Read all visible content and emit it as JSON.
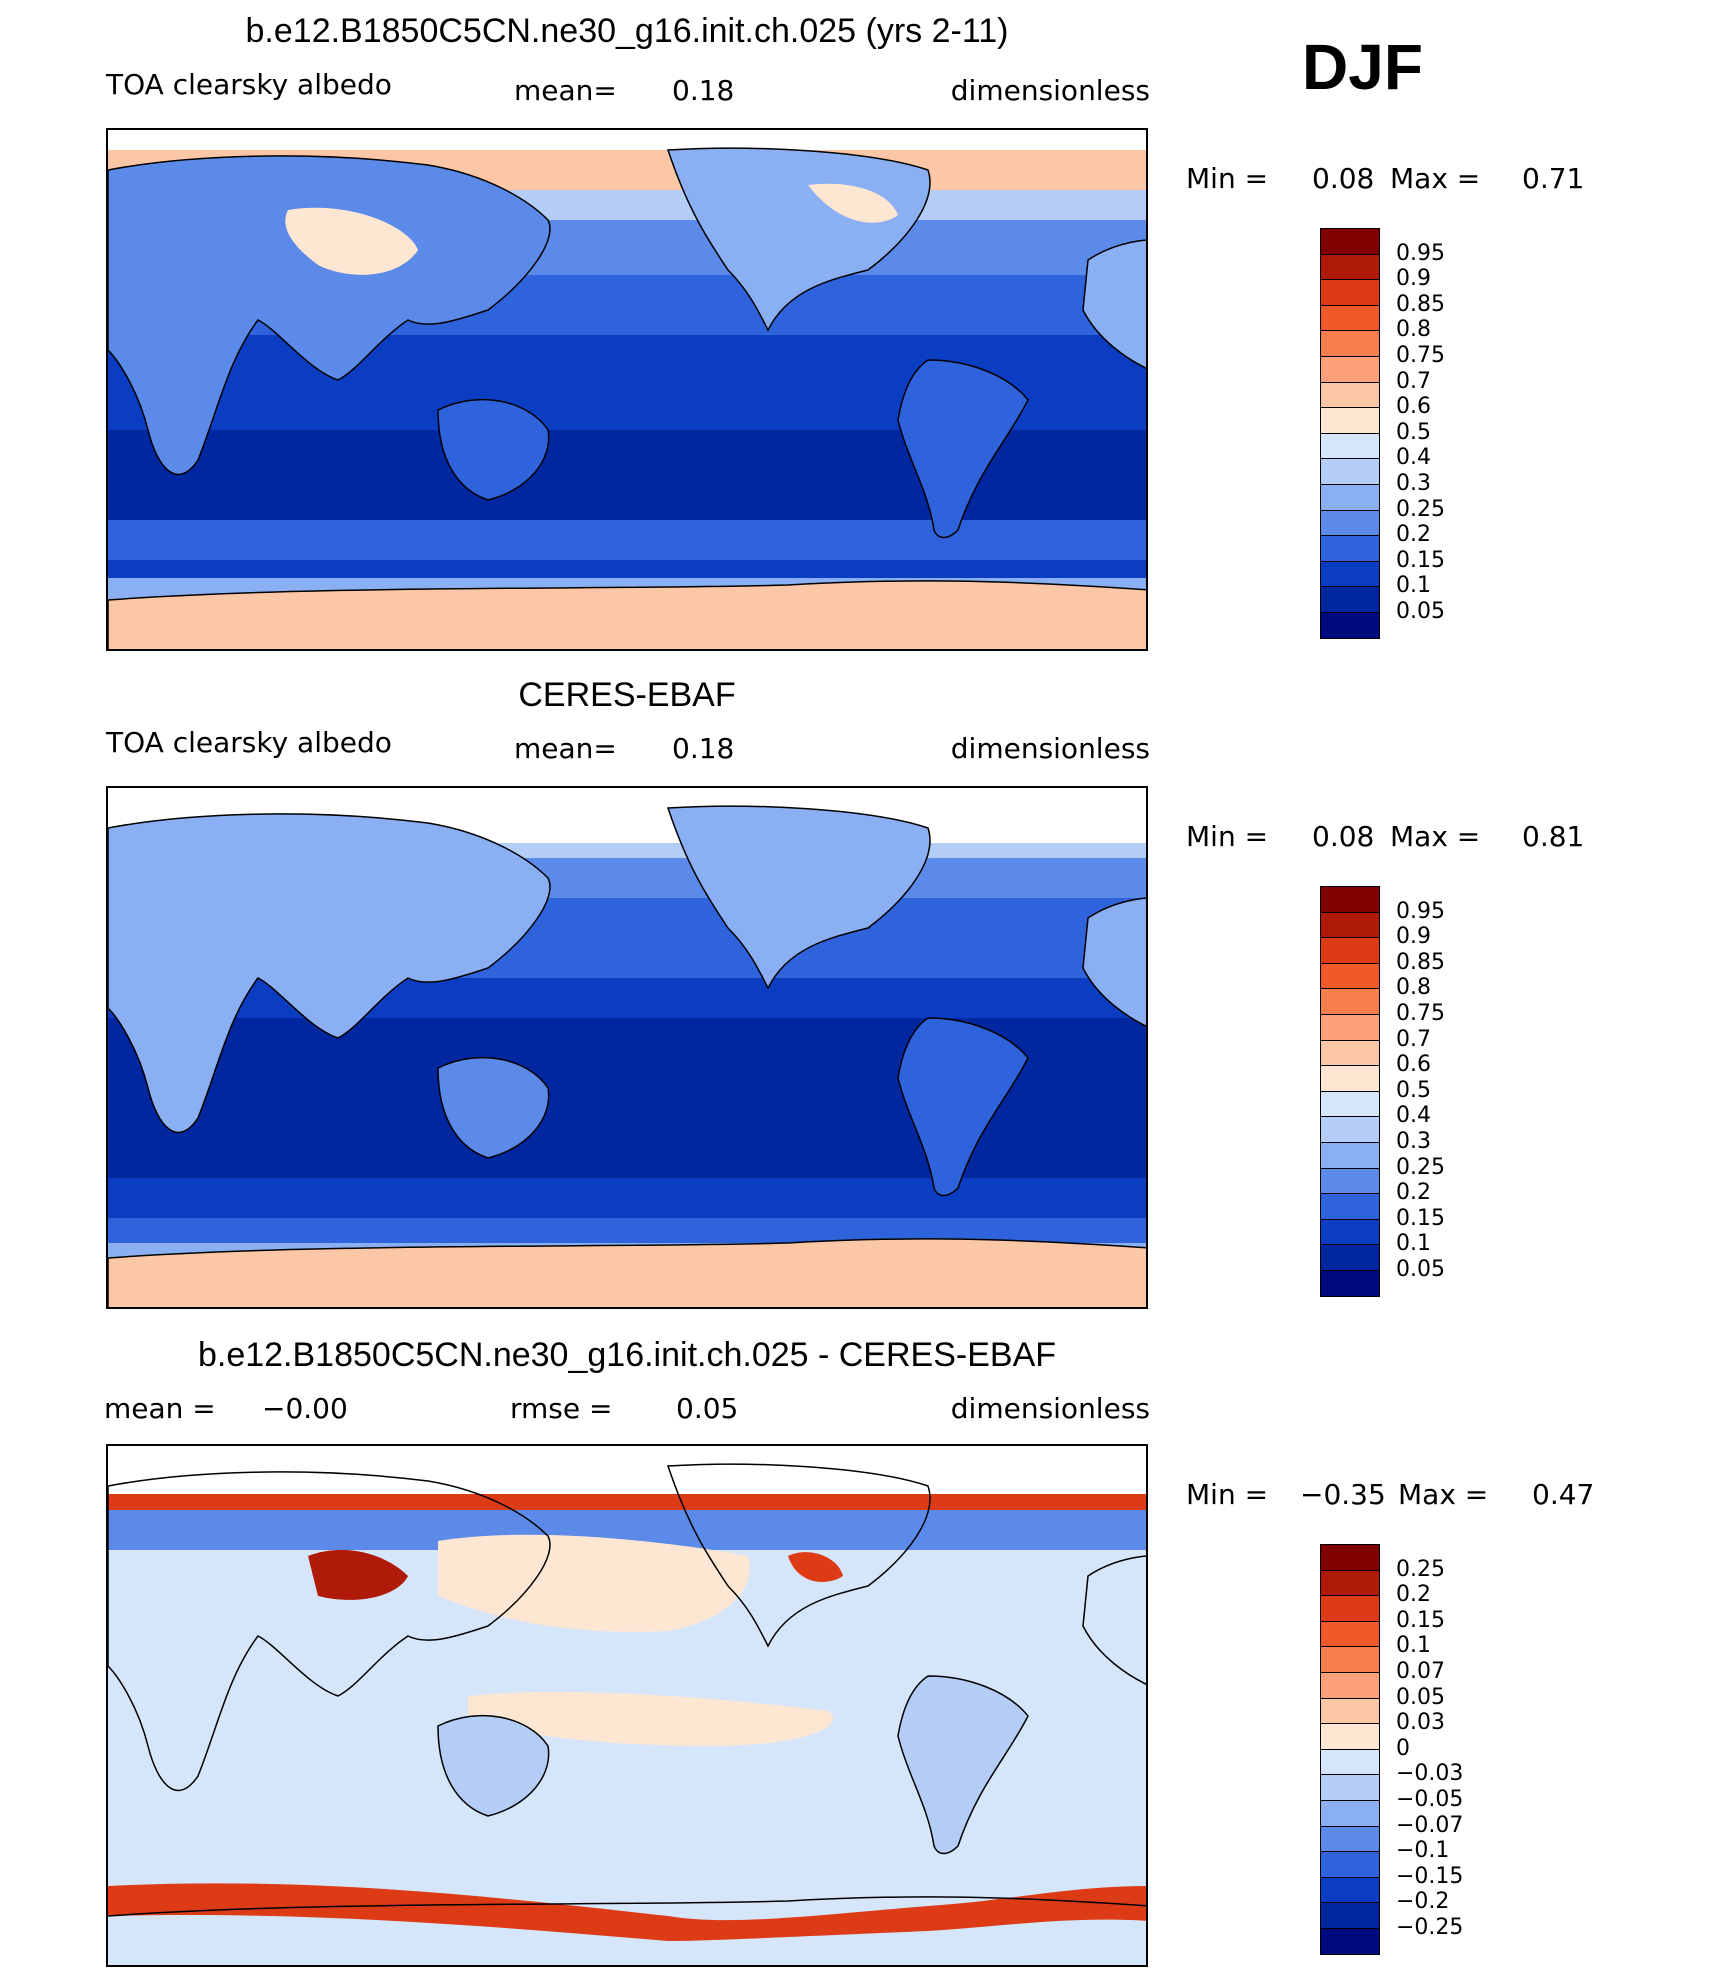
{
  "season": "DJF",
  "colors": {
    "ocean_main": "#0a3fc0",
    "coast": "#000000"
  },
  "panels": [
    {
      "title": "b.e12.B1850C5CN.ne30_g16.init.ch.025 (yrs 2-11)",
      "left_label": "TOA clearsky albedo",
      "mid_label": "mean=",
      "mid_value": "0.18",
      "right_label": "dimensionless",
      "min_label": "Min =",
      "min_value": "0.08",
      "max_label": "Max =",
      "max_value": "0.71"
    },
    {
      "title": "CERES-EBAF",
      "left_label": "TOA clearsky albedo",
      "mid_label": "mean=",
      "mid_value": "0.18",
      "right_label": "dimensionless",
      "min_label": "Min =",
      "min_value": "0.08",
      "max_label": "Max =",
      "max_value": "0.81"
    },
    {
      "title": "b.e12.B1850C5CN.ne30_g16.init.ch.025 - CERES-EBAF",
      "left_label": "mean =",
      "left_value": "−0.00",
      "mid_label": "rmse =",
      "mid_value": "0.05",
      "right_label": "dimensionless",
      "min_label": "Min =",
      "min_value": "−0.35",
      "max_label": "Max =",
      "max_value": "0.47"
    }
  ],
  "chart_data": [
    {
      "type": "heatmap",
      "title": "b.e12.B1850C5CN.ne30_g16.init.ch.025 (yrs 2-11)",
      "variable": "TOA clearsky albedo",
      "units": "dimensionless",
      "mean": 0.18,
      "min": 0.08,
      "max": 0.71,
      "colorbar_levels": [
        "0.95",
        "0.9",
        "0.85",
        "0.8",
        "0.75",
        "0.7",
        "0.6",
        "0.5",
        "0.4",
        "0.3",
        "0.25",
        "0.2",
        "0.15",
        "0.1",
        "0.05"
      ],
      "colorbar_colors": [
        "#800000",
        "#b01a08",
        "#dc3b16",
        "#f05a2a",
        "#f77f4c",
        "#fba079",
        "#fcc7a6",
        "#fde6d2",
        "#d6e6fa",
        "#b3cdf7",
        "#8aaff3",
        "#5b8ae8",
        "#2f63dc",
        "#0b3dc3",
        "#0027a0",
        "#000a80"
      ]
    },
    {
      "type": "heatmap",
      "title": "CERES-EBAF",
      "variable": "TOA clearsky albedo",
      "units": "dimensionless",
      "mean": 0.18,
      "min": 0.08,
      "max": 0.81,
      "colorbar_levels": [
        "0.95",
        "0.9",
        "0.85",
        "0.8",
        "0.75",
        "0.7",
        "0.6",
        "0.5",
        "0.4",
        "0.3",
        "0.25",
        "0.2",
        "0.15",
        "0.1",
        "0.05"
      ],
      "colorbar_colors": [
        "#800000",
        "#b01a08",
        "#dc3b16",
        "#f05a2a",
        "#f77f4c",
        "#fba079",
        "#fcc7a6",
        "#fde6d2",
        "#d6e6fa",
        "#b3cdf7",
        "#8aaff3",
        "#5b8ae8",
        "#2f63dc",
        "#0b3dc3",
        "#0027a0",
        "#000a80"
      ]
    },
    {
      "type": "heatmap",
      "title": "b.e12.B1850C5CN.ne30_g16.init.ch.025 - CERES-EBAF",
      "units": "dimensionless",
      "mean": -0.0,
      "rmse": 0.05,
      "min": -0.35,
      "max": 0.47,
      "colorbar_levels": [
        "0.25",
        "0.2",
        "0.15",
        "0.1",
        "0.07",
        "0.05",
        "0.03",
        "0",
        "−0.03",
        "−0.05",
        "−0.07",
        "−0.1",
        "−0.15",
        "−0.2",
        "−0.25"
      ],
      "colorbar_colors": [
        "#800000",
        "#b01a08",
        "#dc3b16",
        "#f05a2a",
        "#f77f4c",
        "#fba079",
        "#fcc7a6",
        "#fde6d2",
        "#d6e6fa",
        "#b3cdf7",
        "#8aaff3",
        "#5b8ae8",
        "#2f63dc",
        "#0b3dc3",
        "#0027a0",
        "#000a80"
      ]
    }
  ]
}
